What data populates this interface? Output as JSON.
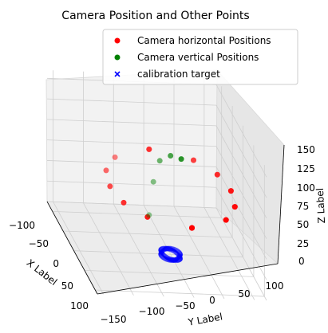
{
  "chart_data": {
    "type": "scatter",
    "projection": "3d",
    "title": "Camera Position and Other Points",
    "xlabel": "X Label",
    "ylabel": "Y Label",
    "zlabel": "Z Label",
    "xlim": [
      -125,
      110
    ],
    "ylim": [
      -160,
      120
    ],
    "zlim": [
      0,
      160
    ],
    "x_ticks": [
      "−100",
      "−50",
      "0",
      "50",
      "100"
    ],
    "y_ticks": [
      "−150",
      "−100",
      "−50",
      "0",
      "50",
      "100"
    ],
    "z_ticks": [
      "0",
      "25",
      "50",
      "75",
      "100",
      "125",
      "150"
    ],
    "grid": true,
    "legend_position": "top-right",
    "series": [
      {
        "name": "Camera horizontal Positions",
        "marker": "circle",
        "color": "#ff0000",
        "x": [
          -100,
          -76,
          -41,
          0,
          41,
          76,
          100,
          100,
          76,
          41,
          0,
          -41,
          -76,
          -100,
          -100,
          -76,
          -41,
          0,
          41,
          76,
          100
        ],
        "y": [
          0,
          65,
          92,
          100,
          92,
          65,
          0,
          0,
          -65,
          -92,
          -100,
          -92,
          -65,
          0,
          0,
          65,
          92,
          100,
          92,
          65,
          0
        ],
        "z": [
          80,
          80,
          80,
          80,
          80,
          80,
          80,
          80,
          80,
          80,
          80,
          80,
          80,
          80,
          80,
          80,
          80,
          80,
          80,
          80,
          80
        ]
      },
      {
        "name": "Camera vertical Positions",
        "marker": "circle",
        "color": "#008000",
        "x": [
          -100,
          -80,
          -50,
          0,
          50
        ],
        "y": [
          0,
          0,
          0,
          0,
          0
        ],
        "z": [
          0,
          50,
          90,
          120,
          140
        ]
      },
      {
        "name": "calibration target",
        "marker": "x",
        "color": "#0000ff",
        "ring_center": [
          0,
          0,
          0
        ],
        "ring_radius": 15,
        "ring_points": 60
      }
    ]
  }
}
